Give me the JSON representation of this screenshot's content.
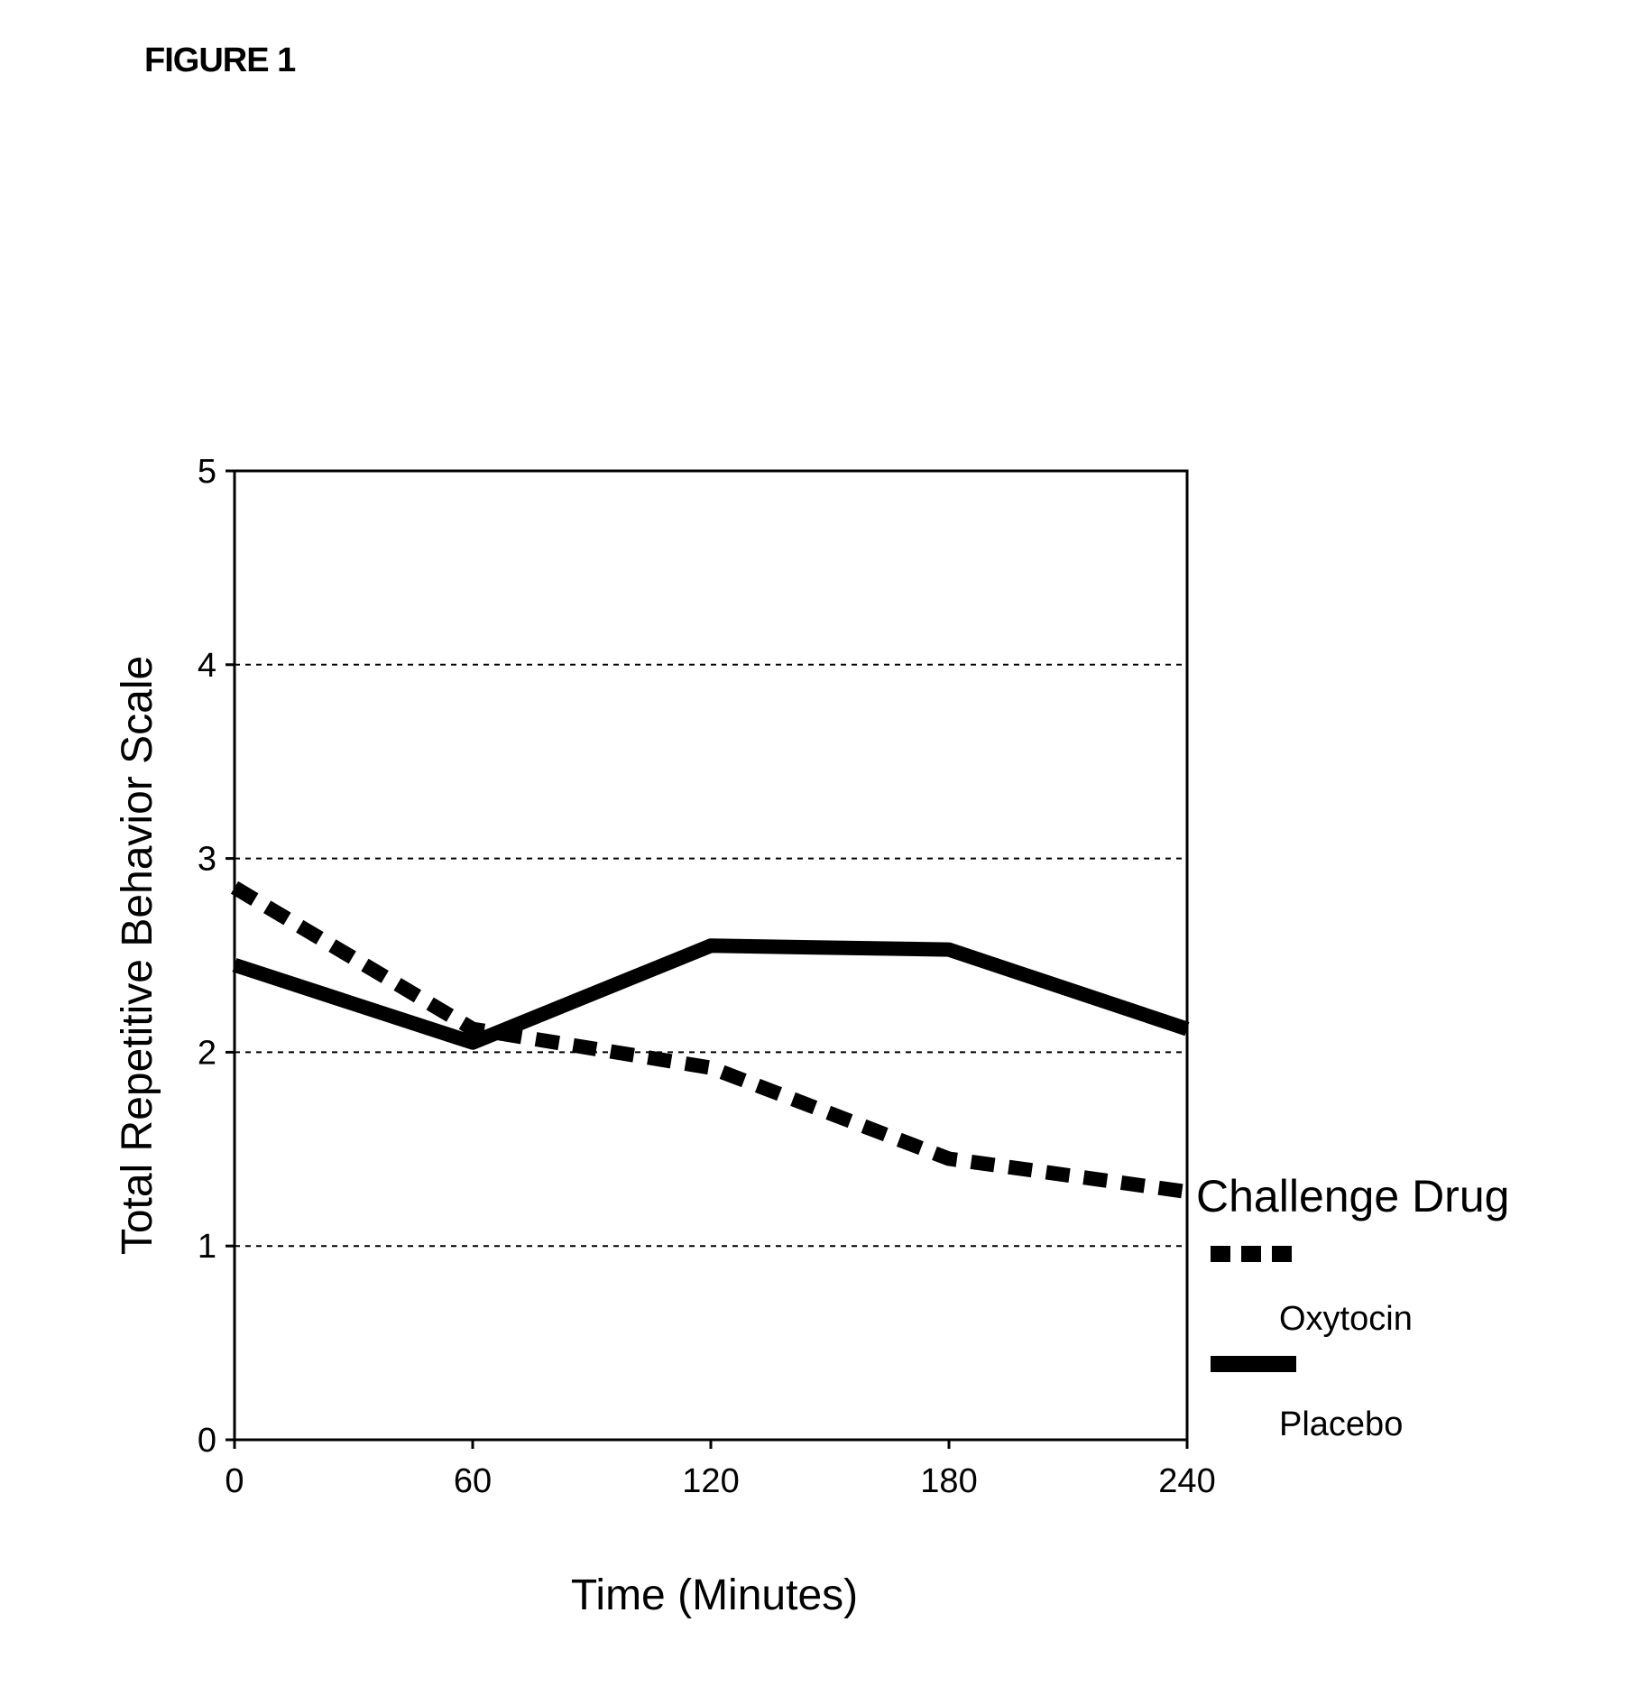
{
  "figure_label": "FIGURE 1",
  "chart_data": {
    "type": "line",
    "title": "",
    "xlabel": "Time (Minutes)",
    "ylabel": "Total Repetitive Behavior Scale",
    "x": [
      0,
      60,
      120,
      180,
      240
    ],
    "xlim": [
      0,
      240
    ],
    "ylim": [
      0,
      5
    ],
    "x_ticks": [
      "0",
      "60",
      "120",
      "180",
      "240"
    ],
    "y_ticks": [
      "0",
      "1",
      "2",
      "3",
      "4",
      "5"
    ],
    "grid": "horizontal dashed",
    "legend_title": "Challenge Drug",
    "legend_position": "right",
    "series": [
      {
        "name": "Oxytocin",
        "style": "dashed",
        "color": "#000000",
        "values": [
          2.85,
          2.12,
          1.92,
          1.45,
          1.28
        ]
      },
      {
        "name": "Placebo",
        "style": "solid",
        "color": "#000000",
        "values": [
          2.45,
          2.05,
          2.55,
          2.53,
          2.12
        ]
      }
    ]
  }
}
